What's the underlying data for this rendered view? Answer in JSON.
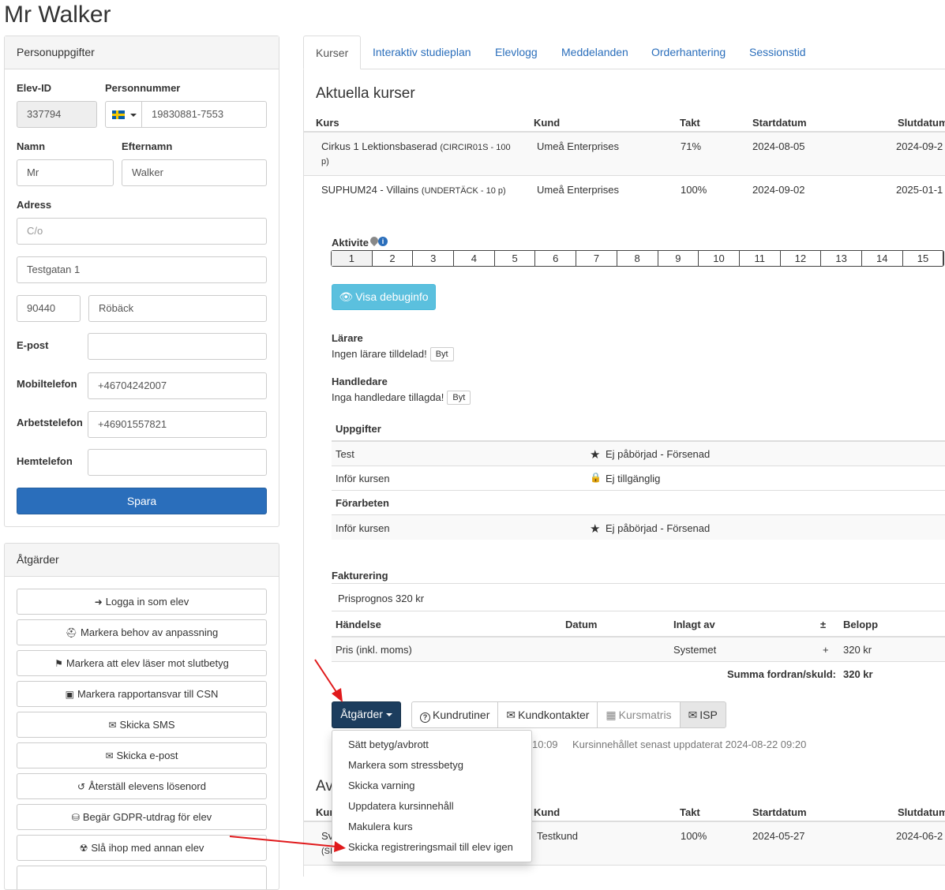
{
  "page": {
    "title": "Mr Walker"
  },
  "personal": {
    "heading": "Personuppgifter",
    "student_id_label": "Elev-ID",
    "student_id": "337794",
    "ssn_label": "Personnummer",
    "ssn": "19830881-7553",
    "first_name_label": "Namn",
    "first_name": "Mr",
    "last_name_label": "Efternamn",
    "last_name": "Walker",
    "address_label": "Adress",
    "co_placeholder": "C/o",
    "street": "Testgatan 1",
    "zip": "90440",
    "city": "Röbäck",
    "email_label": "E-post",
    "email": "",
    "mobile_label": "Mobiltelefon",
    "mobile": "+46704242007",
    "work_label": "Arbetstelefon",
    "work": "+46901557821",
    "home_label": "Hemtelefon",
    "home": "",
    "save_label": "Spara"
  },
  "actions": {
    "heading": "Åtgärder",
    "items": [
      {
        "icon": "➜",
        "label": "Logga in som elev"
      },
      {
        "icon": "⛑",
        "label": "Markera behov av anpassning"
      },
      {
        "icon": "⚑",
        "label": "Markera att elev läser mot slutbetyg"
      },
      {
        "icon": "▣",
        "label": "Markera rapportansvar till CSN"
      },
      {
        "icon": "✉",
        "label": "Skicka SMS"
      },
      {
        "icon": "✉",
        "label": "Skicka e-post"
      },
      {
        "icon": "↺",
        "label": "Återställ elevens lösenord"
      },
      {
        "icon": "⛁",
        "label": "Begär GDPR-utdrag för elev"
      },
      {
        "icon": "☢",
        "label": "Slå ihop med annan elev"
      }
    ]
  },
  "tabs": [
    "Kurser",
    "Interaktiv studieplan",
    "Elevlogg",
    "Meddelanden",
    "Orderhantering",
    "Sessionstid"
  ],
  "current": {
    "heading": "Aktuella kurser",
    "columns": [
      "Kurs",
      "Kund",
      "Takt",
      "Startdatum",
      "Slutdatum"
    ],
    "rows": [
      {
        "course": "Cirkus 1 Lektionsbaserad",
        "code": "(CIRCIR01S - 100",
        "code2": "p)",
        "customer": "Umeå Enterprises",
        "pace": "71%",
        "start": "2024-08-05",
        "end": "2024-09-2"
      },
      {
        "course": "SUPHUM24 - Villains",
        "code": "(UNDERTÄCK - 10 p)",
        "customer": "Umeå Enterprises",
        "pace": "100%",
        "start": "2024-09-02",
        "end": "2025-01-1"
      }
    ]
  },
  "activities": {
    "label": "Aktivite",
    "steps": [
      "1",
      "2",
      "3",
      "4",
      "5",
      "6",
      "7",
      "8",
      "9",
      "10",
      "11",
      "12",
      "13",
      "14",
      "15"
    ],
    "debug_label": "Visa debuginfo"
  },
  "teacher": {
    "label": "Lärare",
    "value": "Ingen lärare tilldelad!",
    "change": "Byt"
  },
  "supervisor": {
    "label": "Handledare",
    "value": "Inga handledare tillagda!",
    "change": "Byt"
  },
  "assignments": {
    "heading": "Uppgifter",
    "rows": [
      {
        "name": "Test",
        "icon": "★",
        "status": "Ej påbörjad - Försenad"
      },
      {
        "name": "Inför kursen",
        "icon": "🔒",
        "status": "Ej tillgänglig"
      }
    ],
    "prep_heading": "Förarbeten",
    "prep_rows": [
      {
        "name": "Inför kursen",
        "icon": "★",
        "status": "Ej påbörjad - Försenad"
      }
    ]
  },
  "billing": {
    "heading": "Fakturering",
    "forecast": "Prisprognos 320 kr",
    "columns": [
      "Händelse",
      "Datum",
      "Inlagt av",
      "±",
      "Belopp"
    ],
    "rows": [
      {
        "event": "Pris (inkl. moms)",
        "date": "",
        "by": "Systemet",
        "sign": "+",
        "amount": "320 kr"
      }
    ],
    "sum_label": "Summa fordran/skuld:",
    "sum_value": "320 kr"
  },
  "toolbar": {
    "actions_label": "Åtgärder",
    "buttons": [
      {
        "icon": "?",
        "label": "Kundrutiner"
      },
      {
        "icon": "✉",
        "label": "Kundkontakter"
      },
      {
        "icon": "▦",
        "label": "Kursmatris"
      },
      {
        "icon": "✉",
        "label": "ISP"
      }
    ],
    "updated_time": "10:09",
    "content_updated": "Kursinnehållet senast uppdaterat 2024-08-22 09:20"
  },
  "dropdown": {
    "items": [
      "Sätt betyg/avbrott",
      "Markera som stressbetyg",
      "Skicka varning",
      "Uppdatera kursinnehåll",
      "Makulera kurs",
      "Skicka registreringsmail till elev igen"
    ]
  },
  "finished": {
    "heading_partial": "Av",
    "columns": [
      "Kur",
      "Kund",
      "Takt",
      "Startdatum",
      "Slutdatum"
    ],
    "row_prefix": "Sv",
    "row_prefix2": "(SI",
    "customer": "Testkund",
    "pace": "100%",
    "start": "2024-05-27",
    "end": "2024-06-2"
  },
  "colors": {
    "primary": "#2a6ebb",
    "dark_button": "#1c3d5e",
    "info": "#5bc0de",
    "arrow": "#e0191b"
  }
}
